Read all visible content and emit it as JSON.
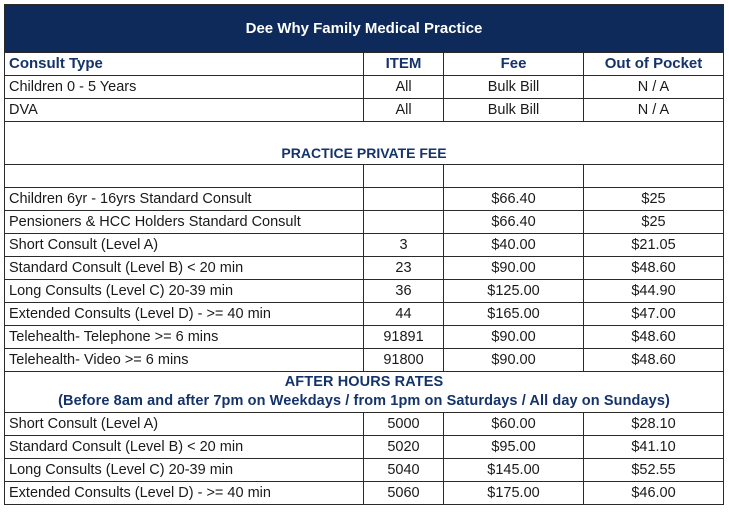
{
  "practice_name": "Dee Why Family Medical Practice",
  "headers": {
    "consult_type": "Consult Type",
    "item": "ITEM",
    "fee": "Fee",
    "out_of_pocket": "Out of Pocket"
  },
  "bulk_billed": [
    {
      "type": "Children 0 - 5 Years",
      "item": "All",
      "fee": "Bulk Bill",
      "oop": "N / A"
    },
    {
      "type": "DVA",
      "item": "All",
      "fee": "Bulk Bill",
      "oop": "N / A"
    }
  ],
  "private_section_title": "PRACTICE PRIVATE FEE",
  "private_fees": [
    {
      "type": "Children 6yr - 16yrs Standard Consult",
      "item": "",
      "fee": "$66.40",
      "oop": "$25"
    },
    {
      "type": "Pensioners & HCC Holders Standard Consult",
      "item": "",
      "fee": "$66.40",
      "oop": "$25"
    },
    {
      "type": "Short Consult (Level A)",
      "item": "3",
      "fee": "$40.00",
      "oop": "$21.05"
    },
    {
      "type": "Standard Consult (Level B) < 20 min",
      "item": "23",
      "fee": "$90.00",
      "oop": "$48.60"
    },
    {
      "type": "Long Consults (Level C) 20-39 min",
      "item": "36",
      "fee": "$125.00",
      "oop": "$44.90"
    },
    {
      "type": "Extended Consults (Level D) - >= 40 min",
      "item": "44",
      "fee": "$165.00",
      "oop": "$47.00"
    },
    {
      "type": "Telehealth- Telephone >= 6 mins",
      "item": "91891",
      "fee": "$90.00",
      "oop": "$48.60"
    },
    {
      "type": "Telehealth- Video >= 6 mins",
      "item": "91800",
      "fee": "$90.00",
      "oop": "$48.60"
    }
  ],
  "after_hours_title": "AFTER HOURS RATES",
  "after_hours_subtitle": "(Before 8am and after 7pm on Weekdays / from 1pm on Saturdays / All day on Sundays)",
  "after_hours_fees": [
    {
      "type": "Short Consult (Level A)",
      "item": "5000",
      "fee": "$60.00",
      "oop": "$28.10"
    },
    {
      "type": "Standard Consult (Level B) < 20 min",
      "item": "5020",
      "fee": "$95.00",
      "oop": "$41.10"
    },
    {
      "type": "Long Consults (Level C) 20-39 min",
      "item": "5040",
      "fee": "$145.00",
      "oop": "$52.55"
    },
    {
      "type": "Extended Consults (Level D) - >= 40 min",
      "item": "5060",
      "fee": "$175.00",
      "oop": "$46.00"
    }
  ],
  "colors": {
    "title_bg": "#0d2a5b",
    "heading_text": "#14336b"
  }
}
